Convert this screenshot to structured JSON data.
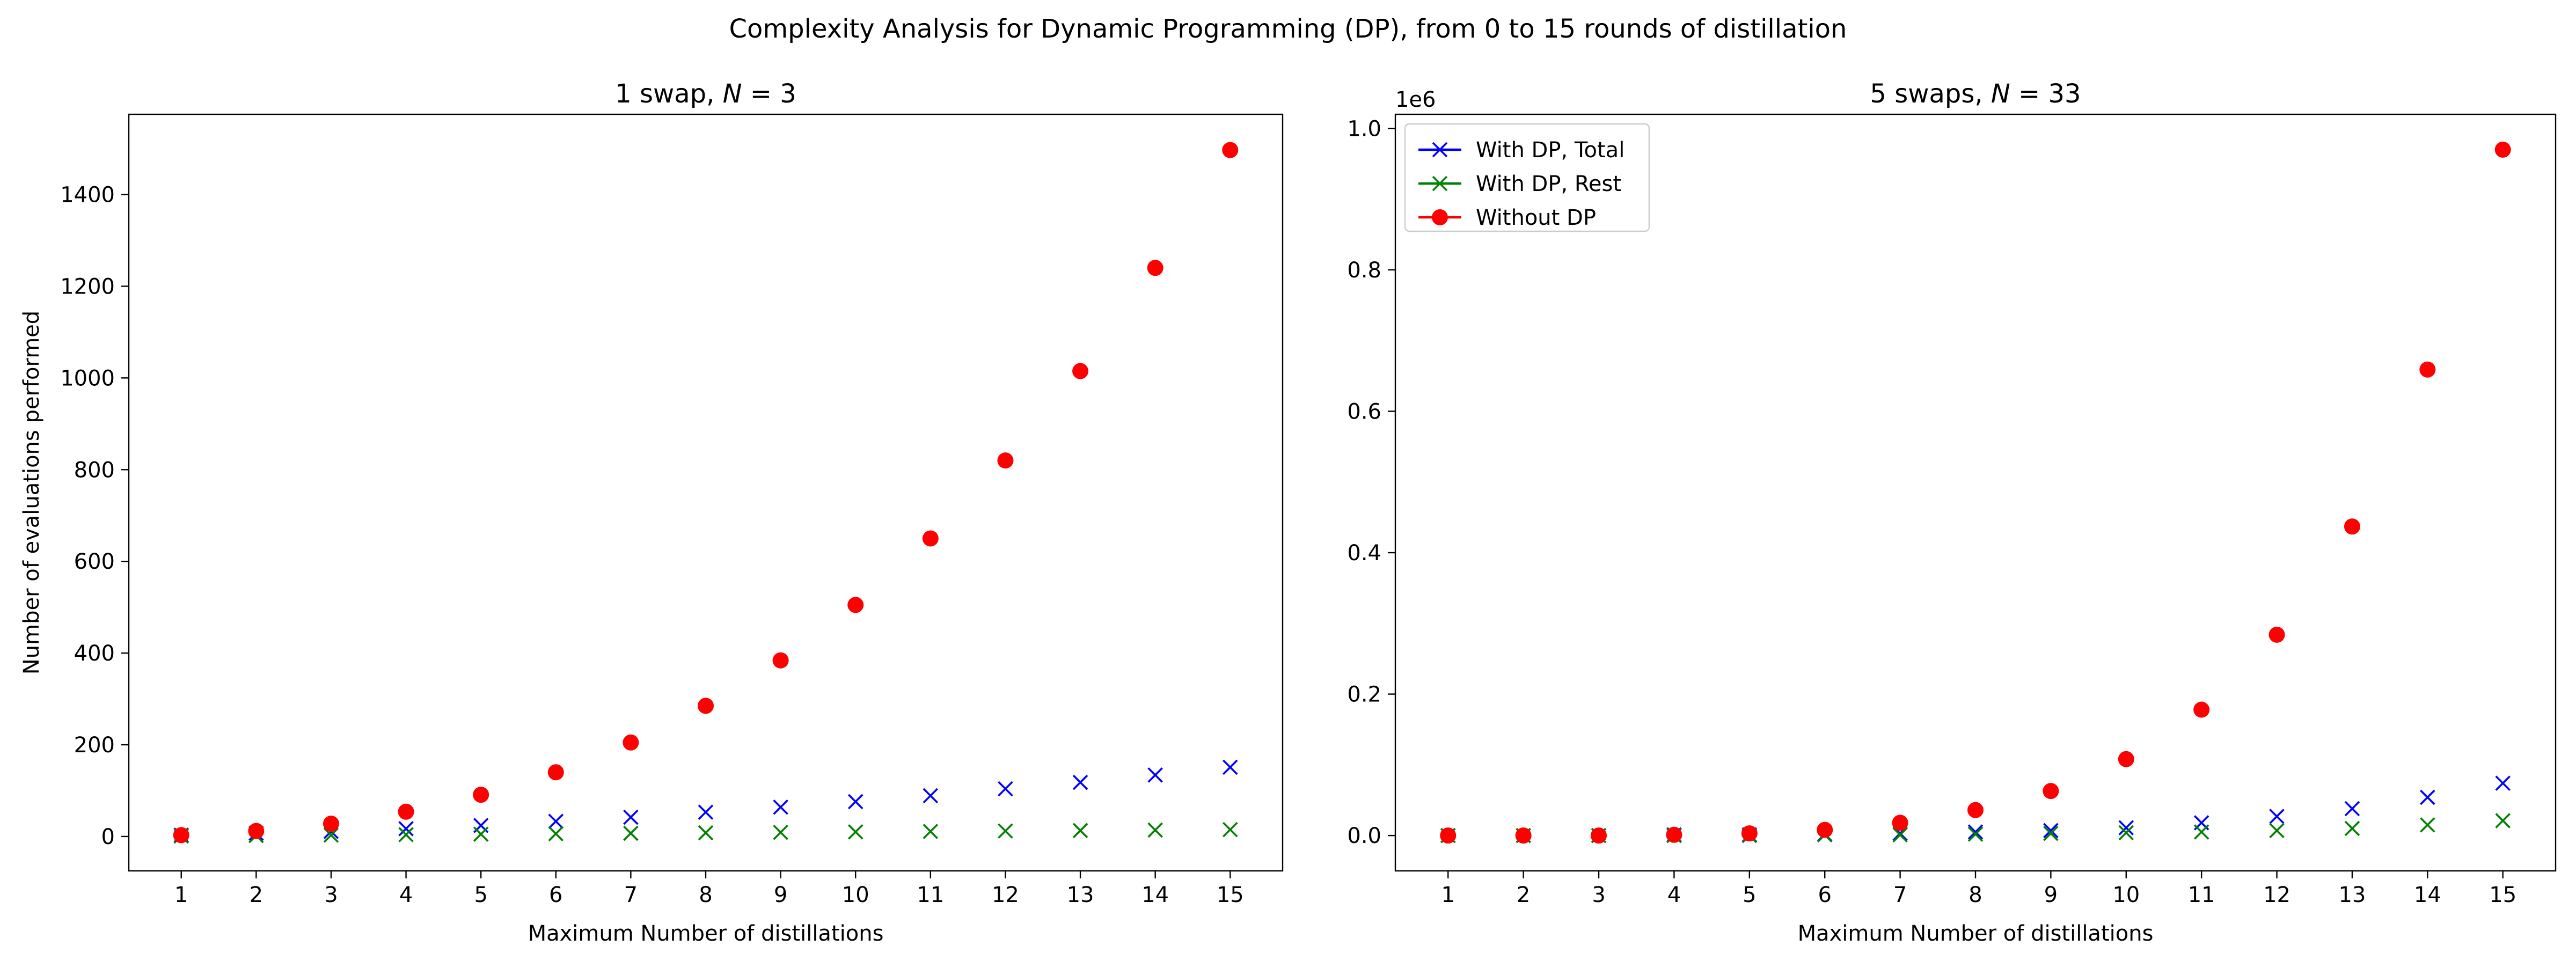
{
  "suptitle": "Complexity Analysis for Dynamic Programming (DP), from 0 to 15 rounds of distillation",
  "colors": {
    "total": "#0000ff",
    "rest": "#008000",
    "without": "#ff0000"
  },
  "chart_data": [
    {
      "type": "scatter",
      "title": "1 swap, N = 3",
      "title_prefix": "1 swap, ",
      "title_var": "N",
      "title_suffix": " = 3",
      "xlabel": "Maximum Number of distillations",
      "ylabel": "Number of evaluations performed",
      "x": [
        1,
        2,
        3,
        4,
        5,
        6,
        7,
        8,
        9,
        10,
        11,
        12,
        13,
        14,
        15
      ],
      "xticks": [
        "1",
        "2",
        "3",
        "4",
        "5",
        "6",
        "7",
        "8",
        "9",
        "10",
        "11",
        "12",
        "13",
        "14",
        "15"
      ],
      "yticks": [
        0,
        200,
        400,
        600,
        800,
        1000,
        1200,
        1400
      ],
      "ytick_labels": [
        "0",
        "200",
        "400",
        "600",
        "800",
        "1000",
        "1200",
        "1400"
      ],
      "xlim": [
        0.3,
        15.7
      ],
      "ylim": [
        -75,
        1575
      ],
      "offset_label": "",
      "legend": null,
      "series": [
        {
          "name": "With DP, Total",
          "marker": "x",
          "color": "#0000ff",
          "values": [
            3,
            7,
            11,
            17,
            24,
            33,
            42,
            53,
            64,
            76,
            89,
            104,
            118,
            134,
            151
          ]
        },
        {
          "name": "With DP, Rest",
          "marker": "x",
          "color": "#008000",
          "values": [
            1,
            2,
            3,
            4,
            5,
            6,
            7,
            8,
            9,
            10,
            11,
            12,
            13,
            14,
            15
          ]
        },
        {
          "name": "Without DP",
          "marker": "o",
          "color": "#ff0000",
          "values": [
            3,
            12,
            28,
            54,
            91,
            140,
            205,
            285,
            384,
            505,
            650,
            820,
            1015,
            1240,
            1497
          ]
        }
      ]
    },
    {
      "type": "scatter",
      "title": "5 swaps, N = 33",
      "title_prefix": "5 swaps, ",
      "title_var": "N",
      "title_suffix": " = 33",
      "xlabel": "Maximum Number of distillations",
      "ylabel": "",
      "x": [
        1,
        2,
        3,
        4,
        5,
        6,
        7,
        8,
        9,
        10,
        11,
        12,
        13,
        14,
        15
      ],
      "xticks": [
        "1",
        "2",
        "3",
        "4",
        "5",
        "6",
        "7",
        "8",
        "9",
        "10",
        "11",
        "12",
        "13",
        "14",
        "15"
      ],
      "yticks": [
        0,
        0.2,
        0.4,
        0.6,
        0.8,
        1.0
      ],
      "ytick_labels": [
        "0.0",
        "0.2",
        "0.4",
        "0.6",
        "0.8",
        "1.0"
      ],
      "xlim": [
        0.3,
        15.7
      ],
      "ylim": [
        -0.05,
        1.02
      ],
      "offset_label": "1e6",
      "legend": {
        "position": "top-left",
        "entries": [
          "With DP, Total",
          "With DP, Rest",
          "Without DP"
        ]
      },
      "series": [
        {
          "name": "With DP, Total",
          "marker": "x",
          "color": "#0000ff",
          "values": [
            0.0,
            0.0,
            0.0,
            0.001,
            0.001,
            0.002,
            0.003,
            0.005,
            0.007,
            0.011,
            0.018,
            0.027,
            0.038,
            0.054,
            0.074
          ]
        },
        {
          "name": "With DP, Rest",
          "marker": "x",
          "color": "#008000",
          "values": [
            0.0,
            0.0,
            0.0,
            0.0,
            0.0,
            0.001,
            0.001,
            0.002,
            0.003,
            0.004,
            0.005,
            0.007,
            0.01,
            0.015,
            0.021
          ]
        },
        {
          "name": "Without DP",
          "marker": "o",
          "color": "#ff0000",
          "values": [
            0.0,
            0.0,
            0.0,
            0.001,
            0.003,
            0.008,
            0.018,
            0.036,
            0.063,
            0.108,
            0.178,
            0.284,
            0.437,
            0.659,
            0.97
          ]
        }
      ]
    }
  ]
}
